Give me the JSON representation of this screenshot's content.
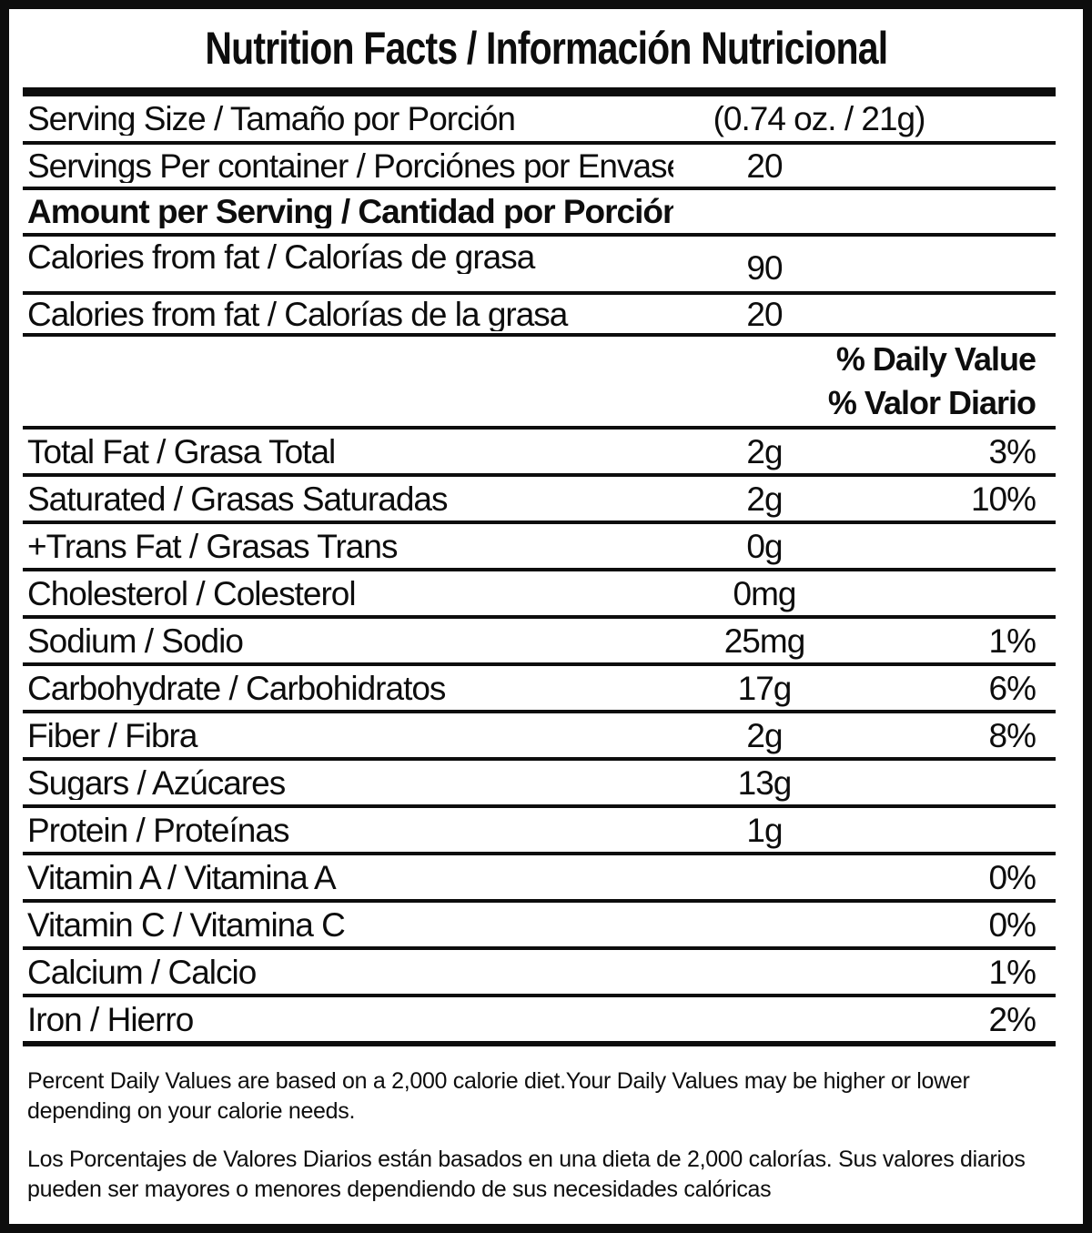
{
  "title": "Nutrition Facts / Información Nutricional",
  "colors": {
    "ink": "#0d0d0d",
    "paper": "#ffffff"
  },
  "daily_value_header": {
    "en": "% Daily Value",
    "es": "% Valor Diario"
  },
  "rows": [
    {
      "label": "Serving Size / Tamaño por Porción",
      "amount": "(0.74 oz. / 21g)",
      "percent": ""
    },
    {
      "label": "Servings Per container / Porciónes por Envase:",
      "amount": "20",
      "percent": ""
    },
    {
      "label": "Amount per Serving / Cantidad por Porción",
      "amount": "",
      "percent": ""
    },
    {
      "label": "Calories from fat / Calorías de grasa",
      "amount": "90",
      "percent": ""
    },
    {
      "label": "Calories from fat / Calorías de la grasa",
      "amount": "20",
      "percent": ""
    },
    {
      "label": "Total Fat / Grasa Total",
      "amount": "2g",
      "percent": "3%"
    },
    {
      "label": "Saturated / Grasas Saturadas",
      "amount": "2g",
      "percent": "10%"
    },
    {
      "label": "+Trans Fat / Grasas Trans",
      "amount": "0g",
      "percent": ""
    },
    {
      "label": "Cholesterol / Colesterol",
      "amount": "0mg",
      "percent": ""
    },
    {
      "label": "Sodium / Sodio",
      "amount": "25mg",
      "percent": "1%"
    },
    {
      "label": "Carbohydrate / Carbohidratos",
      "amount": "17g",
      "percent": "6%"
    },
    {
      "label": "Fiber / Fibra",
      "amount": "2g",
      "percent": "8%"
    },
    {
      "label": "Sugars / Azúcares",
      "amount": "13g",
      "percent": ""
    },
    {
      "label": "Protein / Proteínas",
      "amount": "1g",
      "percent": ""
    },
    {
      "label": "Vitamin A / Vitamina A",
      "amount": "",
      "percent": "0%"
    },
    {
      "label": "Vitamin C / Vitamina C",
      "amount": "",
      "percent": "0%"
    },
    {
      "label": "Calcium / Calcio",
      "amount": "",
      "percent": "1%"
    },
    {
      "label": "Iron / Hierro",
      "amount": "",
      "percent": "2%"
    }
  ],
  "footnotes": {
    "en": "Percent Daily Values are based on a 2,000 calorie diet.Your Daily Values may be higher or lower depending on your calorie needs.",
    "es": "Los Porcentajes de Valores Diarios están basados en una dieta de 2,000 calorías. Sus valores diarios pueden ser mayores o menores dependiendo de sus necesidades calóricas"
  }
}
